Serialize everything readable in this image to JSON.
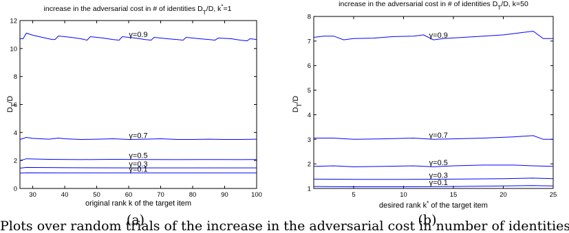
{
  "chart_data": [
    {
      "type": "line",
      "title": "increase in the adversarial cost in # of identities D_T/D, k*=1",
      "xlabel": "original rank k of the target item",
      "ylabel": "D_T/D",
      "xlim": [
        26,
        100
      ],
      "ylim": [
        0,
        12
      ],
      "xticks": [
        30,
        40,
        50,
        60,
        70,
        80,
        90,
        100
      ],
      "yticks": [
        0,
        2,
        4,
        6,
        8,
        10,
        12
      ],
      "grid": false,
      "panel_label": "(a)",
      "series": [
        {
          "name": "γ=0.9",
          "label_x": 63,
          "x": [
            26,
            27,
            28,
            30,
            33,
            36,
            37,
            38,
            42,
            45,
            47,
            48,
            52,
            55,
            57,
            58,
            62,
            65,
            67,
            68,
            72,
            75,
            77,
            78,
            82,
            85,
            87,
            88,
            92,
            95,
            97,
            98,
            100
          ],
          "values": [
            10.7,
            10.7,
            11.1,
            10.95,
            10.8,
            10.65,
            10.65,
            10.9,
            10.8,
            10.7,
            10.6,
            10.85,
            10.75,
            10.65,
            10.6,
            10.85,
            10.75,
            10.65,
            10.6,
            10.8,
            10.7,
            10.65,
            10.6,
            10.8,
            10.7,
            10.65,
            10.6,
            10.75,
            10.7,
            10.6,
            10.55,
            10.7,
            10.65
          ]
        },
        {
          "name": "γ=0.7",
          "label_x": 63,
          "x": [
            26,
            28,
            30,
            35,
            38,
            40,
            45,
            50,
            55,
            60,
            65,
            70,
            75,
            80,
            85,
            90,
            95,
            100
          ],
          "values": [
            3.5,
            3.65,
            3.58,
            3.52,
            3.6,
            3.55,
            3.5,
            3.52,
            3.55,
            3.5,
            3.52,
            3.55,
            3.5,
            3.5,
            3.52,
            3.5,
            3.5,
            3.52
          ]
        },
        {
          "name": "γ=0.5",
          "label_x": 63,
          "x": [
            26,
            28,
            35,
            45,
            55,
            65,
            75,
            85,
            95,
            100
          ],
          "values": [
            2.0,
            2.12,
            2.08,
            2.06,
            2.08,
            2.07,
            2.06,
            2.07,
            2.06,
            2.07
          ]
        },
        {
          "name": "γ=0.3",
          "label_x": 63,
          "x": [
            26,
            28,
            40,
            60,
            80,
            100
          ],
          "values": [
            1.45,
            1.5,
            1.48,
            1.47,
            1.47,
            1.47
          ]
        },
        {
          "name": "γ=0.1",
          "label_x": 63,
          "x": [
            26,
            28,
            40,
            60,
            80,
            100
          ],
          "values": [
            1.1,
            1.12,
            1.11,
            1.11,
            1.11,
            1.11
          ]
        }
      ]
    },
    {
      "type": "line",
      "title": "increase in the adversarial cost in # of identities D_T/D, k=50",
      "xlabel": "desired rank k* of the target item",
      "ylabel": "D_T/D",
      "xlim": [
        1,
        25
      ],
      "ylim": [
        1,
        8
      ],
      "xticks": [
        5,
        10,
        15,
        20,
        25
      ],
      "yticks": [
        1,
        2,
        3,
        4,
        5,
        6,
        7,
        8
      ],
      "grid": false,
      "panel_label": "(b)",
      "series": [
        {
          "name": "γ=0.9",
          "label_x": 13.5,
          "x": [
            1,
            2,
            3,
            4,
            5,
            7,
            9,
            11,
            12,
            13,
            14,
            16,
            18,
            20,
            21,
            22,
            23,
            24,
            25
          ],
          "values": [
            7.15,
            7.2,
            7.2,
            7.05,
            7.1,
            7.12,
            7.18,
            7.2,
            7.25,
            7.05,
            7.1,
            7.15,
            7.2,
            7.25,
            7.3,
            7.35,
            7.4,
            7.1,
            7.1
          ]
        },
        {
          "name": "γ=0.7",
          "label_x": 13.5,
          "x": [
            1,
            3,
            5,
            8,
            11,
            13,
            15,
            18,
            21,
            23,
            24,
            25
          ],
          "values": [
            3.05,
            3.05,
            3.0,
            3.02,
            3.05,
            3.0,
            3.02,
            3.05,
            3.1,
            3.15,
            3.0,
            3.0
          ]
        },
        {
          "name": "γ=0.5",
          "label_x": 13.5,
          "x": [
            1,
            3,
            5,
            8,
            11,
            13,
            15,
            18,
            21,
            23,
            25
          ],
          "values": [
            1.9,
            1.92,
            1.88,
            1.9,
            1.92,
            1.88,
            1.92,
            1.95,
            1.95,
            1.92,
            1.9
          ]
        },
        {
          "name": "γ=0.3",
          "label_x": 13.5,
          "x": [
            1,
            5,
            10,
            15,
            20,
            23,
            25
          ],
          "values": [
            1.38,
            1.37,
            1.37,
            1.38,
            1.4,
            1.42,
            1.4
          ]
        },
        {
          "name": "γ=0.1",
          "label_x": 13.5,
          "x": [
            1,
            5,
            10,
            15,
            20,
            23,
            25
          ],
          "values": [
            1.08,
            1.07,
            1.07,
            1.08,
            1.1,
            1.12,
            1.1
          ]
        }
      ]
    }
  ],
  "caption_fragment": "Plots over random trials of the increase in the adversarial cost in number of identities"
}
